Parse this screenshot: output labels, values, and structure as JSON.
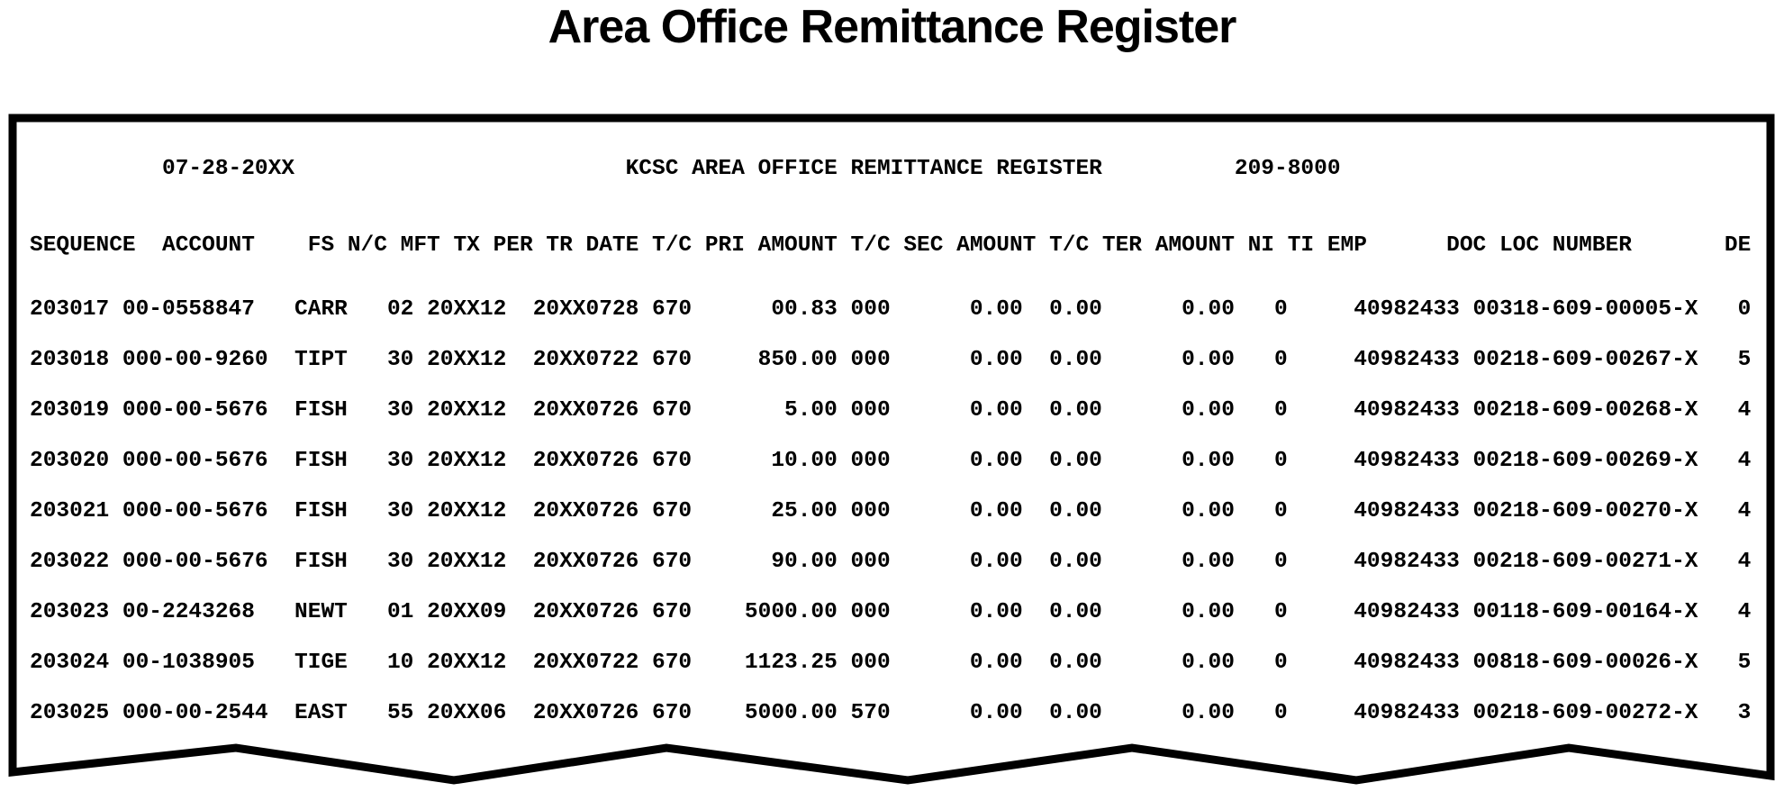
{
  "page_title": "Area Office Remittance Register",
  "colors": {
    "ink": "#000000",
    "paper": "#ffffff"
  },
  "report": {
    "run_date": "07-28-20XX",
    "heading": "KCSC AREA OFFICE REMITTANCE REGISTER",
    "report_number": "209-8000",
    "column_headers": [
      "SEQUENCE",
      "ACCOUNT",
      "FS",
      "N/C",
      "MFT",
      "TX",
      "PER",
      "TR",
      "DATE",
      "T/C",
      "PRI",
      "AMOUNT",
      "T/C",
      "SEC",
      "AMOUNT",
      "T/C",
      "TER",
      "AMOUNT",
      "NI",
      "TI",
      "EMP",
      "DOC",
      "LOC",
      "NUMBER",
      "DE"
    ],
    "rows": [
      {
        "sequence": "203017",
        "account": "00-0558847",
        "fs": "CARR",
        "mft": "02",
        "tx_per": "20XX12",
        "tr_date": "20XX0728",
        "tc1": "670",
        "pri_amount": "00.83",
        "tc2": "000",
        "sec_amount": "0.00",
        "tc3": "0.00",
        "ter_amount": "0.00",
        "ni": "0",
        "ti": "",
        "emp": "40982433",
        "doc_loc_number": "00318-609-00005-X",
        "de": "0"
      },
      {
        "sequence": "203018",
        "account": "000-00-9260",
        "fs": "TIPT",
        "mft": "30",
        "tx_per": "20XX12",
        "tr_date": "20XX0722",
        "tc1": "670",
        "pri_amount": "850.00",
        "tc2": "000",
        "sec_amount": "0.00",
        "tc3": "0.00",
        "ter_amount": "0.00",
        "ni": "0",
        "ti": "",
        "emp": "40982433",
        "doc_loc_number": "00218-609-00267-X",
        "de": "5"
      },
      {
        "sequence": "203019",
        "account": "000-00-5676",
        "fs": "FISH",
        "mft": "30",
        "tx_per": "20XX12",
        "tr_date": "20XX0726",
        "tc1": "670",
        "pri_amount": "5.00",
        "tc2": "000",
        "sec_amount": "0.00",
        "tc3": "0.00",
        "ter_amount": "0.00",
        "ni": "0",
        "ti": "",
        "emp": "40982433",
        "doc_loc_number": "00218-609-00268-X",
        "de": "4"
      },
      {
        "sequence": "203020",
        "account": "000-00-5676",
        "fs": "FISH",
        "mft": "30",
        "tx_per": "20XX12",
        "tr_date": "20XX0726",
        "tc1": "670",
        "pri_amount": "10.00",
        "tc2": "000",
        "sec_amount": "0.00",
        "tc3": "0.00",
        "ter_amount": "0.00",
        "ni": "0",
        "ti": "",
        "emp": "40982433",
        "doc_loc_number": "00218-609-00269-X",
        "de": "4"
      },
      {
        "sequence": "203021",
        "account": "000-00-5676",
        "fs": "FISH",
        "mft": "30",
        "tx_per": "20XX12",
        "tr_date": "20XX0726",
        "tc1": "670",
        "pri_amount": "25.00",
        "tc2": "000",
        "sec_amount": "0.00",
        "tc3": "0.00",
        "ter_amount": "0.00",
        "ni": "0",
        "ti": "",
        "emp": "40982433",
        "doc_loc_number": "00218-609-00270-X",
        "de": "4"
      },
      {
        "sequence": "203022",
        "account": "000-00-5676",
        "fs": "FISH",
        "mft": "30",
        "tx_per": "20XX12",
        "tr_date": "20XX0726",
        "tc1": "670",
        "pri_amount": "90.00",
        "tc2": "000",
        "sec_amount": "0.00",
        "tc3": "0.00",
        "ter_amount": "0.00",
        "ni": "0",
        "ti": "",
        "emp": "40982433",
        "doc_loc_number": "00218-609-00271-X",
        "de": "4"
      },
      {
        "sequence": "203023",
        "account": "00-2243268",
        "fs": "NEWT",
        "mft": "01",
        "tx_per": "20XX09",
        "tr_date": "20XX0726",
        "tc1": "670",
        "pri_amount": "5000.00",
        "tc2": "000",
        "sec_amount": "0.00",
        "tc3": "0.00",
        "ter_amount": "0.00",
        "ni": "0",
        "ti": "",
        "emp": "40982433",
        "doc_loc_number": "00118-609-00164-X",
        "de": "4"
      },
      {
        "sequence": "203024",
        "account": "00-1038905",
        "fs": "TIGE",
        "mft": "10",
        "tx_per": "20XX12",
        "tr_date": "20XX0722",
        "tc1": "670",
        "pri_amount": "1123.25",
        "tc2": "000",
        "sec_amount": "0.00",
        "tc3": "0.00",
        "ter_amount": "0.00",
        "ni": "0",
        "ti": "",
        "emp": "40982433",
        "doc_loc_number": "00818-609-00026-X",
        "de": "5"
      },
      {
        "sequence": "203025",
        "account": "000-00-2544",
        "fs": "EAST",
        "mft": "55",
        "tx_per": "20XX06",
        "tr_date": "20XX0726",
        "tc1": "670",
        "pri_amount": "5000.00",
        "tc2": "570",
        "sec_amount": "0.00",
        "tc3": "0.00",
        "ter_amount": "0.00",
        "ni": "0",
        "ti": "",
        "emp": "40982433",
        "doc_loc_number": "00218-609-00272-X",
        "de": "3"
      }
    ]
  }
}
